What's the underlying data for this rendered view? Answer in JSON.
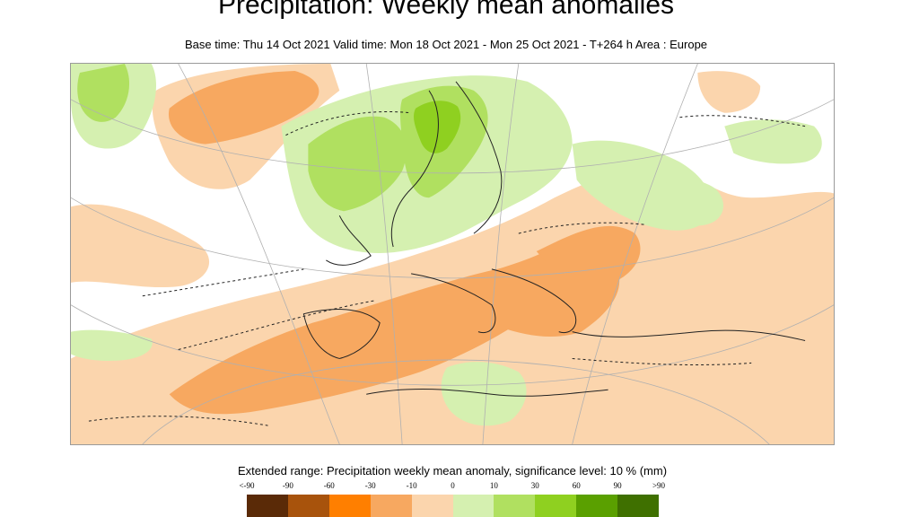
{
  "title": "Precipitation: Weekly mean anomalies",
  "subtitle": "Base time: Thu 14 Oct 2021 Valid time: Mon 18 Oct 2021 - Mon 25 Oct 2021 - T+264 h Area : Europe",
  "legend": {
    "title": "Extended range: Precipitation weekly mean anomaly, significance level: 10 % (mm)",
    "ticks": [
      "<-90",
      "-90",
      "-60",
      "-30",
      "-10",
      "0",
      "10",
      "30",
      "60",
      "90",
      ">90"
    ],
    "colors": [
      "#5a2a07",
      "#a8530c",
      "#ff7f00",
      "#f7a860",
      "#fbd5ad",
      "#d5f0b0",
      "#b0e060",
      "#8fd020",
      "#5aa000",
      "#3f7000"
    ]
  },
  "map": {
    "area": "Europe",
    "colors": {
      "dry_light": "#fbd5ad",
      "dry_medium": "#f7a860",
      "wet_light": "#d5f0b0",
      "wet_medium": "#b0e060",
      "wet_strong": "#8fd020"
    }
  }
}
